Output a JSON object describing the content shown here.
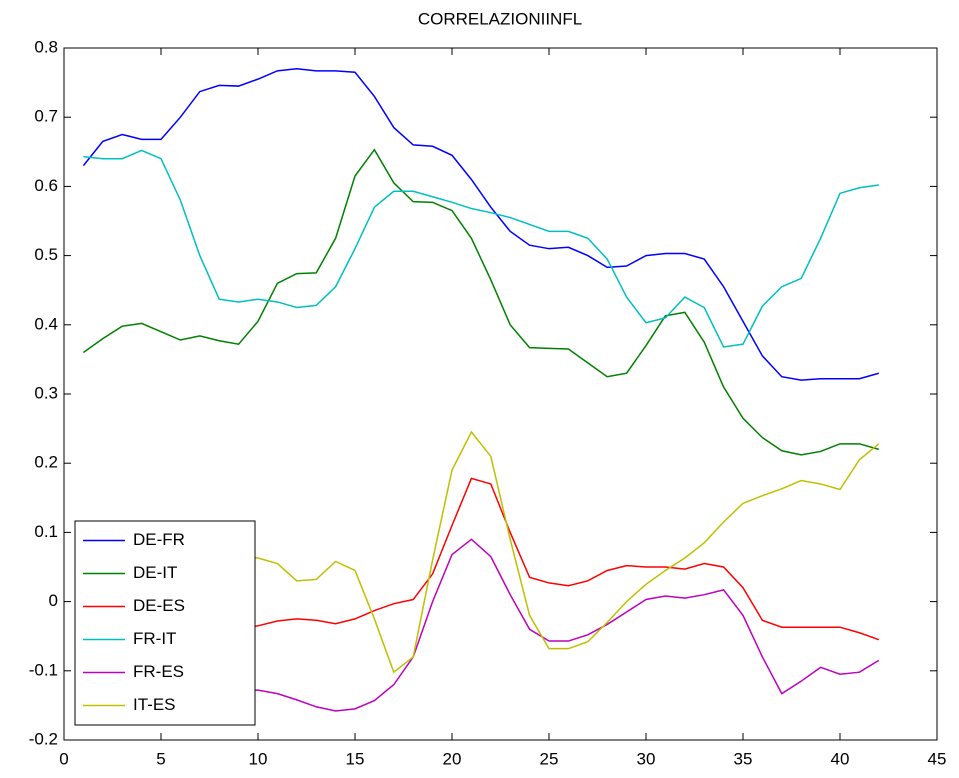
{
  "chart_data": {
    "type": "line",
    "title": "CORRELAZIONIINFL",
    "x": [
      1,
      2,
      3,
      4,
      5,
      6,
      7,
      8,
      9,
      10,
      11,
      12,
      13,
      14,
      15,
      16,
      17,
      18,
      19,
      20,
      21,
      22,
      23,
      24,
      25,
      26,
      27,
      28,
      29,
      30,
      31,
      32,
      33,
      34,
      35,
      36,
      37,
      38,
      39,
      40,
      41,
      42
    ],
    "series": [
      {
        "name": "DE-FR",
        "color": "#0000ff",
        "values": [
          0.63,
          0.665,
          0.675,
          0.668,
          0.668,
          0.7,
          0.737,
          0.746,
          0.745,
          0.755,
          0.767,
          0.77,
          0.767,
          0.767,
          0.765,
          0.73,
          0.685,
          0.66,
          0.658,
          0.645,
          0.61,
          0.57,
          0.535,
          0.515,
          0.51,
          0.512,
          0.5,
          0.483,
          0.485,
          0.5,
          0.503,
          0.503,
          0.495,
          0.455,
          0.405,
          0.355,
          0.325,
          0.32,
          0.322,
          0.322,
          0.322,
          0.33
        ]
      },
      {
        "name": "DE-IT",
        "color": "#008000",
        "values": [
          0.36,
          0.38,
          0.398,
          0.402,
          0.39,
          0.378,
          0.384,
          0.377,
          0.372,
          0.405,
          0.46,
          0.474,
          0.475,
          0.525,
          0.615,
          0.653,
          0.605,
          0.578,
          0.577,
          0.565,
          0.525,
          0.465,
          0.4,
          0.367,
          0.366,
          0.365,
          0.345,
          0.325,
          0.33,
          0.37,
          0.413,
          0.418,
          0.375,
          0.31,
          0.265,
          0.237,
          0.218,
          0.212,
          0.217,
          0.228,
          0.228,
          0.22
        ]
      },
      {
        "name": "DE-ES",
        "color": "#ff0000",
        "values": [
          -0.07,
          -0.065,
          -0.06,
          -0.055,
          -0.05,
          -0.05,
          -0.045,
          -0.045,
          -0.04,
          -0.035,
          -0.028,
          -0.025,
          -0.027,
          -0.032,
          -0.025,
          -0.013,
          -0.003,
          0.003,
          0.04,
          0.11,
          0.178,
          0.17,
          0.1,
          0.035,
          0.027,
          0.023,
          0.03,
          0.045,
          0.052,
          0.05,
          0.05,
          0.047,
          0.055,
          0.05,
          0.02,
          -0.027,
          -0.037,
          -0.037,
          -0.037,
          -0.037,
          -0.045,
          -0.055
        ]
      },
      {
        "name": "FR-IT",
        "color": "#00bfbf",
        "values": [
          0.643,
          0.64,
          0.64,
          0.652,
          0.64,
          0.58,
          0.5,
          0.437,
          0.433,
          0.437,
          0.433,
          0.425,
          0.428,
          0.455,
          0.51,
          0.57,
          0.593,
          0.593,
          0.585,
          0.577,
          0.568,
          0.562,
          0.555,
          0.545,
          0.535,
          0.535,
          0.525,
          0.495,
          0.44,
          0.403,
          0.41,
          0.44,
          0.425,
          0.368,
          0.372,
          0.427,
          0.455,
          0.467,
          0.525,
          0.59,
          0.598,
          0.602
        ]
      },
      {
        "name": "FR-ES",
        "color": "#bf00bf",
        "values": [
          -0.11,
          -0.11,
          -0.115,
          -0.115,
          -0.12,
          -0.12,
          -0.125,
          -0.125,
          -0.128,
          -0.128,
          -0.133,
          -0.142,
          -0.152,
          -0.158,
          -0.155,
          -0.143,
          -0.12,
          -0.08,
          0.0,
          0.068,
          0.09,
          0.065,
          0.01,
          -0.04,
          -0.057,
          -0.057,
          -0.048,
          -0.033,
          -0.015,
          0.003,
          0.008,
          0.005,
          0.01,
          0.017,
          -0.02,
          -0.08,
          -0.133,
          -0.115,
          -0.095,
          -0.105,
          -0.102,
          -0.085
        ]
      },
      {
        "name": "IT-ES",
        "color": "#bfbf00",
        "values": [
          0.05,
          0.055,
          0.06,
          0.06,
          0.065,
          0.07,
          0.07,
          0.068,
          0.065,
          0.063,
          0.055,
          0.03,
          0.032,
          0.058,
          0.045,
          -0.025,
          -0.102,
          -0.08,
          0.06,
          0.19,
          0.245,
          0.21,
          0.09,
          -0.02,
          -0.068,
          -0.068,
          -0.058,
          -0.03,
          0.0,
          0.025,
          0.045,
          0.063,
          0.085,
          0.115,
          0.142,
          0.153,
          0.163,
          0.175,
          0.17,
          0.162,
          0.205,
          0.228
        ]
      }
    ],
    "xlim": [
      0,
      45
    ],
    "xticks": [
      0,
      5,
      10,
      15,
      20,
      25,
      30,
      35,
      40,
      45
    ],
    "ylim": [
      -0.2,
      0.8
    ],
    "yticks": [
      -0.2,
      -0.1,
      0,
      0.1,
      0.2,
      0.3,
      0.4,
      0.5,
      0.6,
      0.7,
      0.8
    ],
    "legend": "lower left"
  }
}
